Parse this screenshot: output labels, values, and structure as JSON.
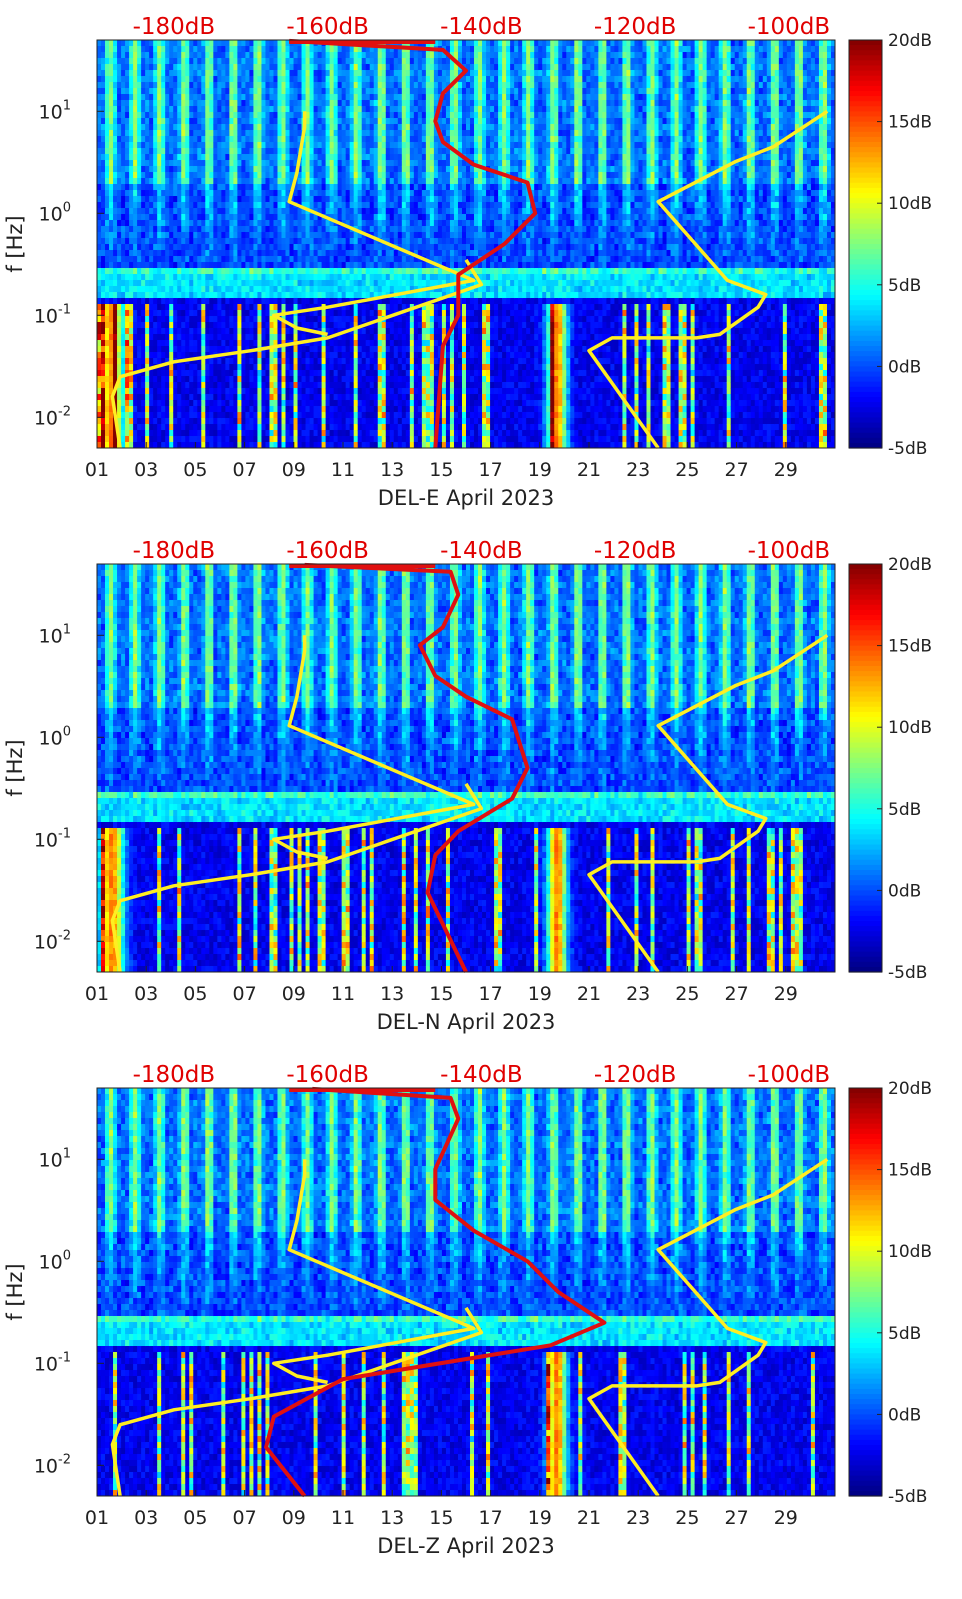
{
  "chart_data": [
    {
      "type": "heatmap",
      "xlabel": "DEL-E April 2023",
      "ylabel": "f [Hz]",
      "x_ticks": [
        "01",
        "03",
        "05",
        "07",
        "09",
        "11",
        "13",
        "15",
        "17",
        "19",
        "21",
        "23",
        "25",
        "27",
        "29"
      ],
      "y_ticks": [
        "10-2",
        "10-1",
        "100",
        "101"
      ],
      "y_scale": "log",
      "ylim_hz": [
        0.005,
        50
      ],
      "xlim_days": [
        1,
        31
      ],
      "colorbar_ticks": [
        "20dB",
        "15dB",
        "10dB",
        "5dB",
        "0dB",
        "-5dB"
      ],
      "colorbar_range_db": [
        -5,
        20
      ],
      "top_axis_ticks": [
        "-180dB",
        "-160dB",
        "-140dB",
        "-120dB",
        "-100dB"
      ],
      "top_axis_range_db": [
        -190,
        -94
      ],
      "red_curve": {
        "db": [
          -165,
          -145,
          -142,
          -145,
          -146,
          -145,
          -141,
          -134,
          -133,
          -137,
          -143,
          -143,
          -145,
          -146
        ],
        "hz": [
          49,
          40,
          25,
          15,
          8,
          5,
          3,
          2,
          1,
          0.5,
          0.25,
          0.1,
          0.05,
          0.005
        ]
      },
      "yellow_curves": [
        {
          "db": [
            -187,
            -188,
            -187,
            -180,
            -170,
            -160,
            -140,
            -142
          ],
          "hz": [
            0.005,
            0.016,
            0.025,
            0.035,
            0.045,
            0.06,
            0.2,
            0.35
          ]
        },
        {
          "db": [
            -160,
            -164,
            -167,
            -160,
            -141,
            -165,
            -164,
            -163,
            -163
          ],
          "hz": [
            0.065,
            0.075,
            0.1,
            0.12,
            0.22,
            1.3,
            2.5,
            7,
            10
          ]
        },
        {
          "db": [
            -117,
            -126,
            -123,
            -112,
            -109,
            -104,
            -103,
            -108,
            -117,
            -107,
            -102,
            -95
          ],
          "hz": [
            0.005,
            0.045,
            0.06,
            0.06,
            0.065,
            0.12,
            0.16,
            0.22,
            1.3,
            3.2,
            4.5,
            10
          ]
        }
      ]
    },
    {
      "type": "heatmap",
      "xlabel": "DEL-N April 2023",
      "ylabel": "f [Hz]",
      "x_ticks": [
        "01",
        "03",
        "05",
        "07",
        "09",
        "11",
        "13",
        "15",
        "17",
        "19",
        "21",
        "23",
        "25",
        "27",
        "29"
      ],
      "y_ticks": [
        "10-2",
        "10-1",
        "100",
        "101"
      ],
      "y_scale": "log",
      "ylim_hz": [
        0.005,
        50
      ],
      "xlim_days": [
        1,
        31
      ],
      "colorbar_ticks": [
        "20dB",
        "15dB",
        "10dB",
        "5dB",
        "0dB",
        "-5dB"
      ],
      "colorbar_range_db": [
        -5,
        20
      ],
      "top_axis_ticks": [
        "-180dB",
        "-160dB",
        "-140dB",
        "-120dB",
        "-100dB"
      ],
      "top_axis_range_db": [
        -190,
        -94
      ],
      "red_curve": {
        "db": [
          -163,
          -144,
          -143,
          -145,
          -148,
          -146,
          -142,
          -136,
          -134,
          -136,
          -143,
          -146,
          -147,
          -142
        ],
        "hz": [
          49,
          42,
          25,
          12,
          8,
          4,
          2.5,
          1.5,
          0.5,
          0.25,
          0.12,
          0.07,
          0.03,
          0.005
        ]
      },
      "yellow_curves": [
        {
          "db": [
            -187,
            -188,
            -187,
            -180,
            -170,
            -160,
            -140,
            -142
          ],
          "hz": [
            0.005,
            0.016,
            0.025,
            0.035,
            0.045,
            0.06,
            0.2,
            0.35
          ]
        },
        {
          "db": [
            -160,
            -164,
            -167,
            -160,
            -141,
            -165,
            -164,
            -163,
            -163
          ],
          "hz": [
            0.065,
            0.075,
            0.1,
            0.12,
            0.22,
            1.3,
            2.5,
            7,
            10
          ]
        },
        {
          "db": [
            -117,
            -126,
            -123,
            -112,
            -109,
            -104,
            -103,
            -108,
            -117,
            -107,
            -102,
            -95
          ],
          "hz": [
            0.005,
            0.045,
            0.06,
            0.06,
            0.065,
            0.12,
            0.16,
            0.22,
            1.3,
            3.2,
            4.5,
            10
          ]
        }
      ]
    },
    {
      "type": "heatmap",
      "xlabel": "DEL-Z April 2023",
      "ylabel": "f [Hz]",
      "x_ticks": [
        "01",
        "03",
        "05",
        "07",
        "09",
        "11",
        "13",
        "15",
        "17",
        "19",
        "21",
        "23",
        "25",
        "27",
        "29"
      ],
      "y_ticks": [
        "10-2",
        "10-1",
        "100",
        "101"
      ],
      "y_scale": "log",
      "ylim_hz": [
        0.005,
        50
      ],
      "xlim_days": [
        1,
        31
      ],
      "colorbar_ticks": [
        "20dB",
        "15dB",
        "10dB",
        "5dB",
        "0dB",
        "-5dB"
      ],
      "colorbar_range_db": [
        -5,
        20
      ],
      "top_axis_ticks": [
        "-180dB",
        "-160dB",
        "-140dB",
        "-120dB",
        "-100dB"
      ],
      "top_axis_range_db": [
        -190,
        -94
      ],
      "red_curve": {
        "db": [
          -162,
          -144,
          -143,
          -146,
          -146,
          -141,
          -134,
          -130,
          -124,
          -131,
          -158,
          -167,
          -168,
          -163
        ],
        "hz": [
          49,
          40,
          25,
          8,
          4,
          2,
          1,
          0.5,
          0.25,
          0.15,
          0.07,
          0.03,
          0.015,
          0.005
        ]
      },
      "yellow_curves": [
        {
          "db": [
            -187,
            -188,
            -187,
            -180,
            -170,
            -160,
            -140,
            -142
          ],
          "hz": [
            0.005,
            0.016,
            0.025,
            0.035,
            0.045,
            0.06,
            0.2,
            0.35
          ]
        },
        {
          "db": [
            -160,
            -164,
            -167,
            -160,
            -141,
            -165,
            -164,
            -163,
            -163
          ],
          "hz": [
            0.065,
            0.075,
            0.1,
            0.12,
            0.22,
            1.3,
            2.5,
            7,
            10
          ]
        },
        {
          "db": [
            -117,
            -126,
            -123,
            -112,
            -109,
            -104,
            -103,
            -108,
            -117,
            -107,
            -102,
            -95
          ],
          "hz": [
            0.005,
            0.045,
            0.06,
            0.06,
            0.065,
            0.12,
            0.16,
            0.22,
            1.3,
            3.2,
            4.5,
            10
          ]
        }
      ]
    }
  ],
  "colors": {
    "red_curve": "#e01010",
    "yellow_curve": "#ffee22",
    "top_axis_text": "#e00000"
  }
}
